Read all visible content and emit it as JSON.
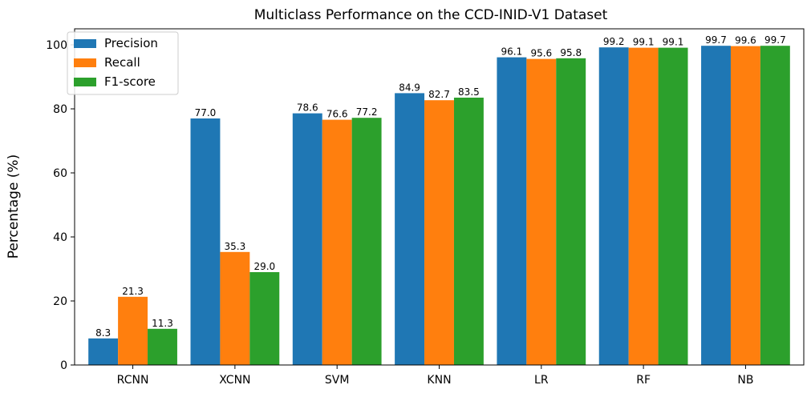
{
  "chart_data": {
    "type": "bar",
    "title": "Multiclass Performance on the CCD-INID-V1 Dataset",
    "xlabel": "",
    "ylabel": "Percentage (%)",
    "ylim": [
      0,
      105
    ],
    "yticks": [
      0,
      20,
      40,
      60,
      80,
      100
    ],
    "grid": false,
    "legend_position": "top-left",
    "categories": [
      "RCNN",
      "XCNN",
      "SVM",
      "KNN",
      "LR",
      "RF",
      "NB"
    ],
    "series": [
      {
        "name": "Precision",
        "color": "#1f77b4",
        "values": [
          8.3,
          77.0,
          78.6,
          84.9,
          96.1,
          99.2,
          99.7
        ]
      },
      {
        "name": "Recall",
        "color": "#ff7f0e",
        "values": [
          21.3,
          35.3,
          76.6,
          82.7,
          95.6,
          99.1,
          99.6
        ]
      },
      {
        "name": "F1-score",
        "color": "#2ca02c",
        "values": [
          11.3,
          29.0,
          77.2,
          83.5,
          95.8,
          99.1,
          99.7
        ]
      }
    ]
  }
}
